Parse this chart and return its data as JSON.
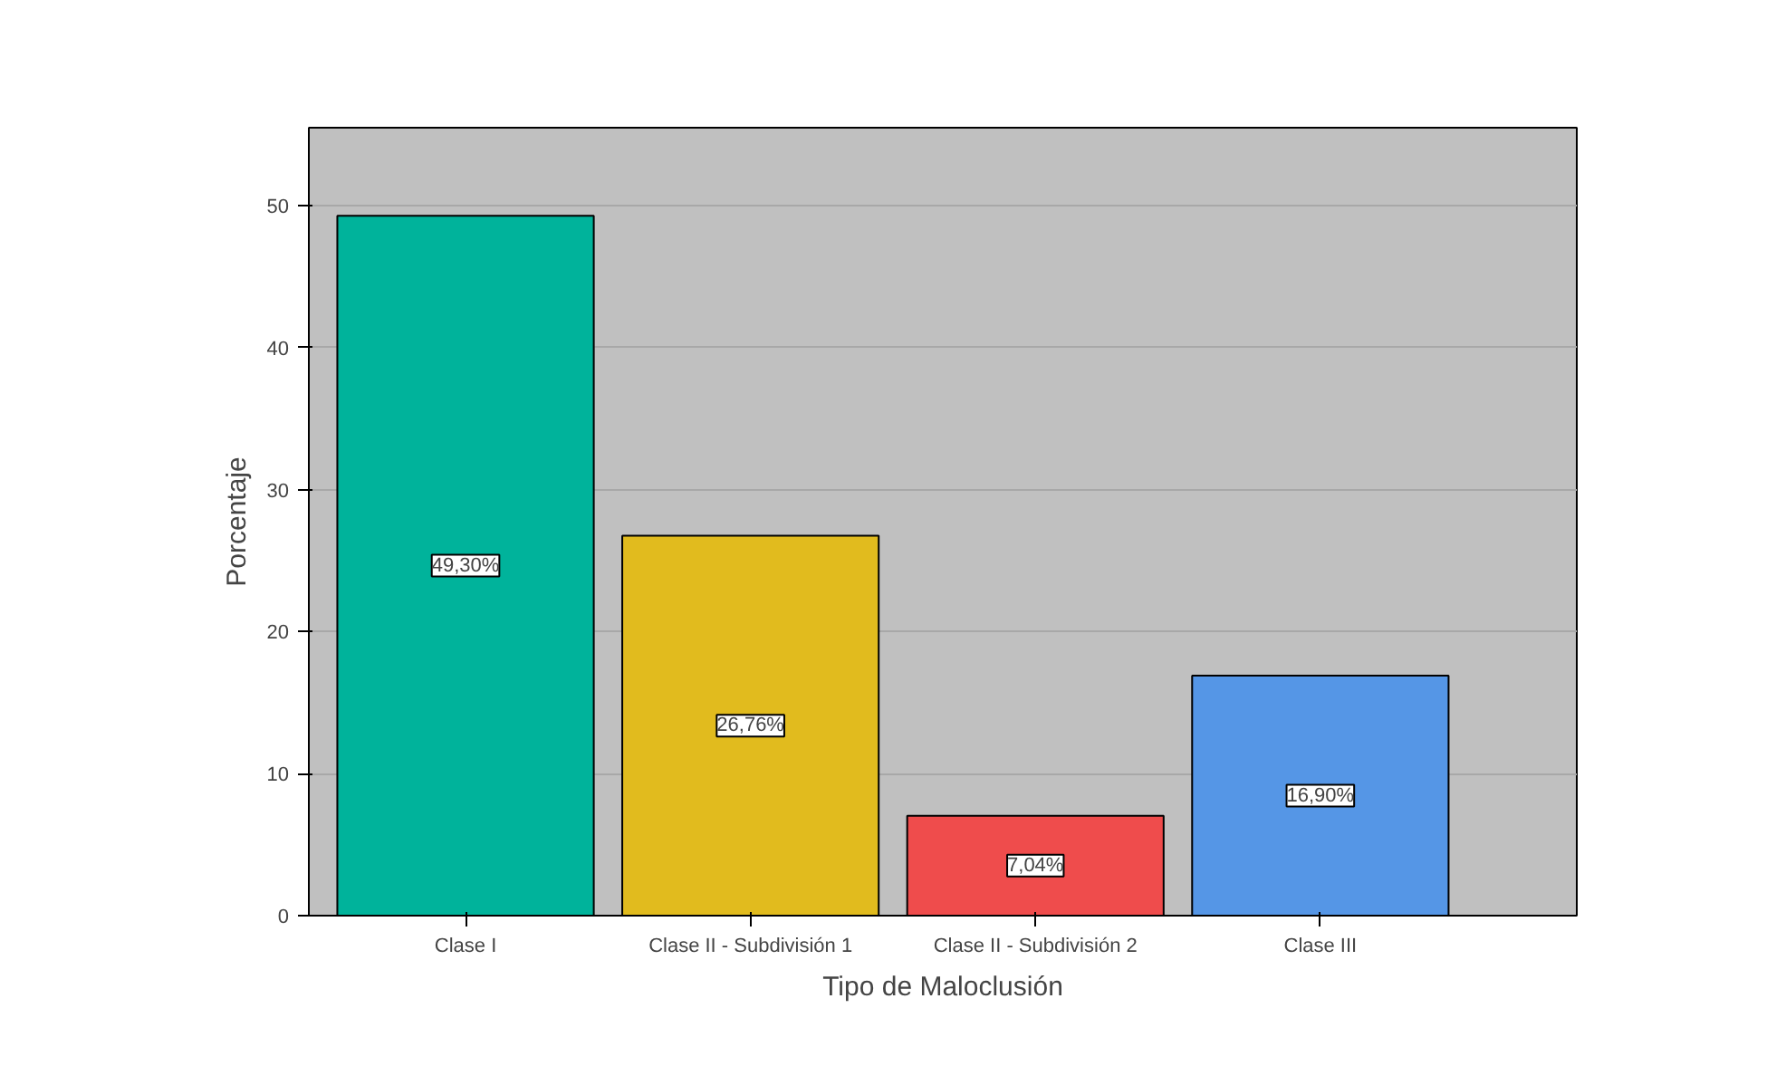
{
  "chart_data": {
    "type": "bar",
    "xlabel": "Tipo de Maloclusión",
    "ylabel": "Porcentaje",
    "categories": [
      "Clase I",
      "Clase II - Subdivisión 1",
      "Clase II - Subdivisión 2",
      "Clase III"
    ],
    "values": [
      49.3,
      26.76,
      7.04,
      16.9
    ],
    "colors": [
      "#00b39b",
      "#e1bb1e",
      "#ef4c4c",
      "#5596e6"
    ],
    "value_labels": [
      "49,30%",
      "26,76%",
      "7,04%",
      "16,90%"
    ],
    "ylim": [
      0,
      55.5
    ],
    "yticks": [
      0,
      10,
      20,
      30,
      40,
      50
    ],
    "grid": "y"
  }
}
